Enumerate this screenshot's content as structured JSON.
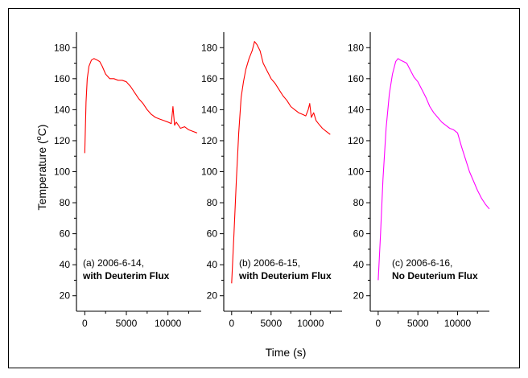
{
  "figure": {
    "ylabel_main": "Temperature (",
    "ylabel_deg": "o",
    "ylabel_unit": "C)",
    "xlabel": "Time (s)"
  },
  "chart_data": [
    {
      "type": "line",
      "color": "#ff0000",
      "annotation_line1": "(a) 2006-6-14,",
      "annotation_line2": "with Deuterim Flux",
      "xlim": [
        -1000,
        14000
      ],
      "ylim": [
        10,
        190
      ],
      "x_ticks": [
        0,
        5000,
        10000
      ],
      "x_tick_labels": [
        "0",
        "5000",
        "10000"
      ],
      "y_ticks": [
        20,
        40,
        60,
        80,
        100,
        120,
        140,
        160,
        180
      ],
      "y_tick_labels": [
        "20",
        "40",
        "60",
        "80",
        "100",
        "120",
        "140",
        "160",
        "180"
      ],
      "series": [
        {
          "x": [
            0,
            150,
            300,
            500,
            800,
            1100,
            1500,
            1800,
            2100,
            2500,
            3000,
            3500,
            4000,
            4500,
            5000,
            5500,
            6000,
            6500,
            7000,
            7500,
            8000,
            8500,
            9000,
            9500,
            10000,
            10400,
            10600,
            10800,
            11000,
            11500,
            12000,
            12500,
            13000,
            13500
          ],
          "y": [
            112,
            145,
            160,
            168,
            172,
            173,
            172,
            171,
            168,
            163,
            160,
            160,
            159,
            159,
            158,
            155,
            151,
            147,
            144,
            140,
            137,
            135,
            134,
            133,
            132,
            131,
            142,
            130,
            132,
            128,
            129,
            127,
            126,
            125
          ]
        }
      ]
    },
    {
      "type": "line",
      "color": "#ff0000",
      "annotation_line1": "(b) 2006-6-15,",
      "annotation_line2": "with Deuterium Flux",
      "xlim": [
        -1000,
        14000
      ],
      "ylim": [
        10,
        190
      ],
      "x_ticks": [
        0,
        5000,
        10000
      ],
      "x_tick_labels": [
        "0",
        "5000",
        "10000"
      ],
      "y_ticks": [
        20,
        40,
        60,
        80,
        100,
        120,
        140,
        160,
        180
      ],
      "y_tick_labels": [
        "20",
        "40",
        "60",
        "80",
        "100",
        "120",
        "140",
        "160",
        "180"
      ],
      "series": [
        {
          "x": [
            0,
            300,
            600,
            900,
            1200,
            1500,
            1800,
            2200,
            2600,
            2900,
            3200,
            3600,
            4000,
            4500,
            5000,
            5500,
            6000,
            6500,
            7000,
            7500,
            8000,
            8500,
            9000,
            9400,
            9700,
            9900,
            10100,
            10400,
            10700,
            11000,
            11500,
            12000,
            12500
          ],
          "y": [
            28,
            60,
            95,
            125,
            148,
            158,
            166,
            173,
            178,
            184,
            182,
            178,
            170,
            165,
            160,
            157,
            153,
            149,
            146,
            142,
            140,
            138,
            137,
            136,
            140,
            144,
            135,
            138,
            133,
            131,
            128,
            126,
            124
          ]
        }
      ]
    },
    {
      "type": "line",
      "color": "#ff00ff",
      "annotation_line1": "(c) 2006-6-16,",
      "annotation_line2": "No Deuterium Flux",
      "xlim": [
        -1000,
        14000
      ],
      "ylim": [
        10,
        190
      ],
      "x_ticks": [
        0,
        5000,
        10000
      ],
      "x_tick_labels": [
        "0",
        "5000",
        "10000"
      ],
      "y_ticks": [
        20,
        40,
        60,
        80,
        100,
        120,
        140,
        160,
        180
      ],
      "y_tick_labels": [
        "20",
        "40",
        "60",
        "80",
        "100",
        "120",
        "140",
        "160",
        "180"
      ],
      "series": [
        {
          "x": [
            0,
            300,
            600,
            1000,
            1400,
            1800,
            2200,
            2500,
            2800,
            3200,
            3600,
            4000,
            4500,
            5000,
            5500,
            6000,
            6500,
            7000,
            7500,
            8000,
            8500,
            9000,
            9500,
            10000,
            10500,
            11000,
            11500,
            12000,
            12500,
            13000,
            13500,
            14000
          ],
          "y": [
            30,
            60,
            95,
            128,
            150,
            163,
            171,
            173,
            172,
            171,
            170,
            166,
            161,
            158,
            153,
            148,
            142,
            138,
            135,
            132,
            130,
            128,
            127,
            125,
            116,
            108,
            100,
            94,
            88,
            83,
            79,
            76
          ]
        }
      ]
    }
  ]
}
